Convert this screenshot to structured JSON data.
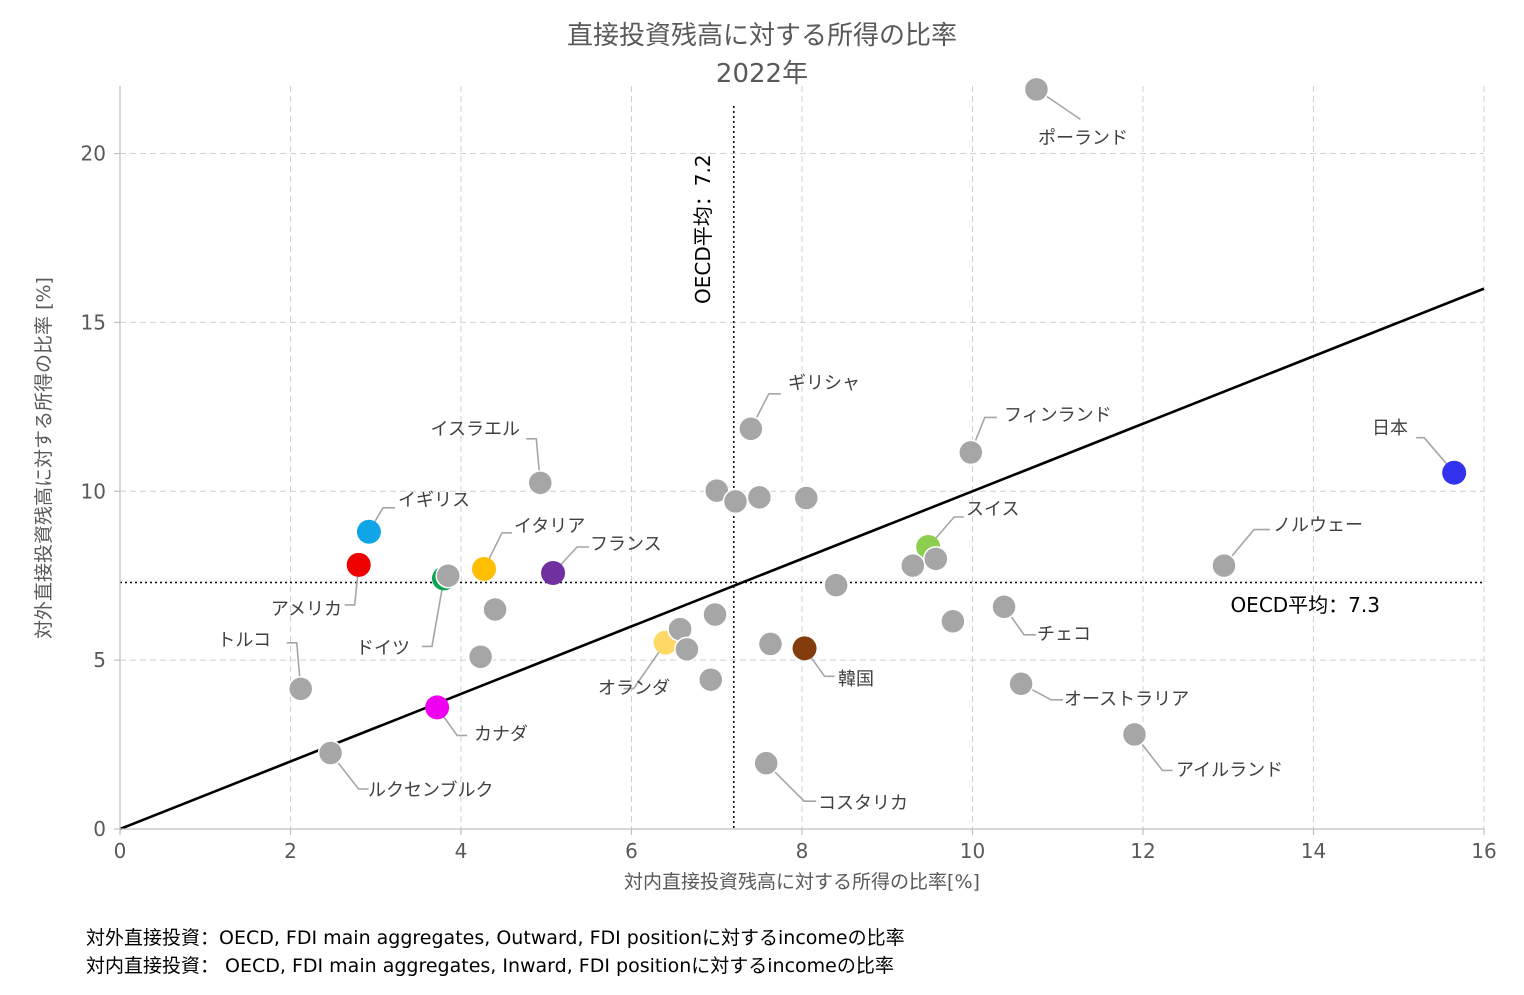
{
  "chart_data": {
    "type": "scatter",
    "title": "直接投資残高に対する所得の比率",
    "subtitle": "2022年",
    "xlabel": "対内直接投資残高に対する所得の比率[%]",
    "ylabel": "対外直接投資残高に対する所得の比率 [%]",
    "xlim": [
      0,
      16
    ],
    "ylim": [
      0,
      22
    ],
    "xticks": [
      0,
      2,
      4,
      6,
      8,
      10,
      12,
      14,
      16
    ],
    "yticks": [
      0,
      5,
      10,
      15,
      20
    ],
    "grid": true,
    "x_average": {
      "value": 7.2,
      "label": "OECD平均：7.2"
    },
    "y_average": {
      "value": 7.3,
      "label": "OECD平均：7.3"
    },
    "reference_line": {
      "x": [
        0,
        16
      ],
      "y": [
        0,
        16
      ]
    },
    "points": [
      {
        "label": "ポーランド",
        "x": 10.75,
        "y": 21.9,
        "color": "#a6a6a6"
      },
      {
        "label": "ギリシャ",
        "x": 7.4,
        "y": 11.85,
        "color": "#a6a6a6"
      },
      {
        "label": "フィンランド",
        "x": 9.98,
        "y": 11.15,
        "color": "#a6a6a6"
      },
      {
        "label": "日本",
        "x": 15.65,
        "y": 10.55,
        "color": "#3333ee"
      },
      {
        "label": "イスラエル",
        "x": 4.93,
        "y": 10.25,
        "color": "#a6a6a6"
      },
      {
        "label": "イギリス",
        "x": 2.92,
        "y": 8.8,
        "color": "#0fa5e6"
      },
      {
        "label": "スイス",
        "x": 9.48,
        "y": 8.35,
        "color": "#8ccf4f"
      },
      {
        "label": "ノルウェー",
        "x": 12.95,
        "y": 7.8,
        "color": "#a6a6a6"
      },
      {
        "label": "アメリカ",
        "x": 2.8,
        "y": 7.82,
        "color": "#ee0000"
      },
      {
        "label": "イタリア",
        "x": 4.27,
        "y": 7.7,
        "color": "#ffbe00"
      },
      {
        "label": "フランス",
        "x": 5.08,
        "y": 7.58,
        "color": "#7030a0"
      },
      {
        "label": "ドイツ",
        "x": 3.8,
        "y": 7.42,
        "color": "#0aa550"
      },
      {
        "label": "チェコ",
        "x": 10.37,
        "y": 6.58,
        "color": "#a6a6a6"
      },
      {
        "label": "トルコ",
        "x": 2.12,
        "y": 4.15,
        "color": "#a6a6a6"
      },
      {
        "label": "オランダ",
        "x": 6.4,
        "y": 5.52,
        "color": "#ffd966"
      },
      {
        "label": "韓国",
        "x": 8.03,
        "y": 5.35,
        "color": "#843c0c"
      },
      {
        "label": "オーストラリア",
        "x": 10.57,
        "y": 4.3,
        "color": "#a6a6a6"
      },
      {
        "label": "カナダ",
        "x": 3.72,
        "y": 3.6,
        "color": "#ee00ee"
      },
      {
        "label": "アイルランド",
        "x": 11.9,
        "y": 2.8,
        "color": "#a6a6a6"
      },
      {
        "label": "ルクセンブルク",
        "x": 2.47,
        "y": 2.25,
        "color": "#a6a6a6"
      },
      {
        "label": "コスタリカ",
        "x": 7.58,
        "y": 1.95,
        "color": "#a6a6a6"
      },
      {
        "label": "",
        "x": 7.0,
        "y": 10.02,
        "color": "#a6a6a6"
      },
      {
        "label": "",
        "x": 7.22,
        "y": 9.7,
        "color": "#a6a6a6"
      },
      {
        "label": "",
        "x": 7.5,
        "y": 9.82,
        "color": "#a6a6a6"
      },
      {
        "label": "",
        "x": 8.05,
        "y": 9.8,
        "color": "#a6a6a6"
      },
      {
        "label": "",
        "x": 9.3,
        "y": 7.8,
        "color": "#a6a6a6"
      },
      {
        "label": "",
        "x": 9.57,
        "y": 8.0,
        "color": "#a6a6a6"
      },
      {
        "label": "",
        "x": 8.4,
        "y": 7.22,
        "color": "#a6a6a6"
      },
      {
        "label": "",
        "x": 3.85,
        "y": 7.5,
        "color": "#a6a6a6"
      },
      {
        "label": "",
        "x": 4.4,
        "y": 6.5,
        "color": "#a6a6a6"
      },
      {
        "label": "",
        "x": 6.98,
        "y": 6.35,
        "color": "#a6a6a6"
      },
      {
        "label": "",
        "x": 9.77,
        "y": 6.15,
        "color": "#a6a6a6"
      },
      {
        "label": "",
        "x": 6.57,
        "y": 5.92,
        "color": "#a6a6a6"
      },
      {
        "label": "",
        "x": 6.65,
        "y": 5.32,
        "color": "#a6a6a6"
      },
      {
        "label": "",
        "x": 7.63,
        "y": 5.48,
        "color": "#a6a6a6"
      },
      {
        "label": "",
        "x": 4.23,
        "y": 5.1,
        "color": "#a6a6a6"
      },
      {
        "label": "",
        "x": 6.93,
        "y": 4.42,
        "color": "#a6a6a6"
      }
    ]
  },
  "notes": {
    "line1": "対外直接投資：OECD, FDI main aggregates, Outward, FDI positionに対するincomeの比率",
    "line2": "対内直接投資：  OECD, FDI main aggregates, Inward, FDI positionに対するincomeの比率"
  }
}
